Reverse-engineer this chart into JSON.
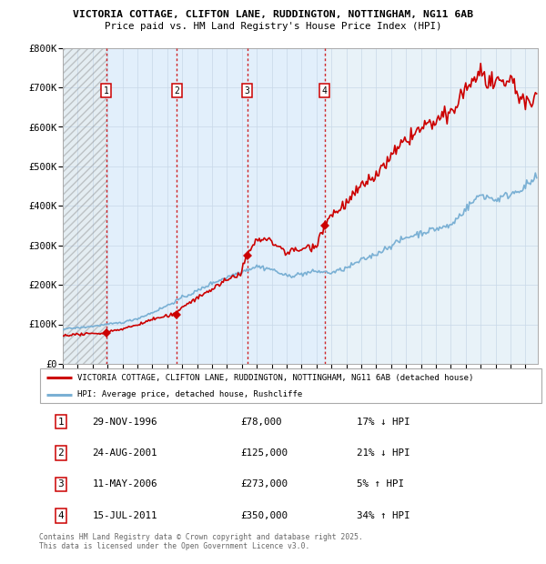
{
  "title_line1": "VICTORIA COTTAGE, CLIFTON LANE, RUDDINGTON, NOTTINGHAM, NG11 6AB",
  "title_line2": "Price paid vs. HM Land Registry's House Price Index (HPI)",
  "hpi_color": "#7ab0d4",
  "price_color": "#cc0000",
  "ylim": [
    0,
    800000
  ],
  "yticks": [
    0,
    100000,
    200000,
    300000,
    400000,
    500000,
    600000,
    700000,
    800000
  ],
  "ytick_labels": [
    "£0",
    "£100K",
    "£200K",
    "£300K",
    "£400K",
    "£500K",
    "£600K",
    "£700K",
    "£800K"
  ],
  "xlim_start": 1994.0,
  "xlim_end": 2025.83,
  "sale_dates": [
    1996.91,
    2001.64,
    2006.36,
    2011.54
  ],
  "sale_prices": [
    78000,
    125000,
    273000,
    350000
  ],
  "sale_labels": [
    "1",
    "2",
    "3",
    "4"
  ],
  "legend_entries": [
    "VICTORIA COTTAGE, CLIFTON LANE, RUDDINGTON, NOTTINGHAM, NG11 6AB (detached house)",
    "HPI: Average price, detached house, Rushcliffe"
  ],
  "table_rows": [
    [
      "1",
      "29-NOV-1996",
      "£78,000",
      "17% ↓ HPI"
    ],
    [
      "2",
      "24-AUG-2001",
      "£125,000",
      "21% ↓ HPI"
    ],
    [
      "3",
      "11-MAY-2006",
      "£273,000",
      "5% ↑ HPI"
    ],
    [
      "4",
      "15-JUL-2011",
      "£350,000",
      "34% ↑ HPI"
    ]
  ],
  "footer": "Contains HM Land Registry data © Crown copyright and database right 2025.\nThis data is licensed under the Open Government Licence v3.0."
}
